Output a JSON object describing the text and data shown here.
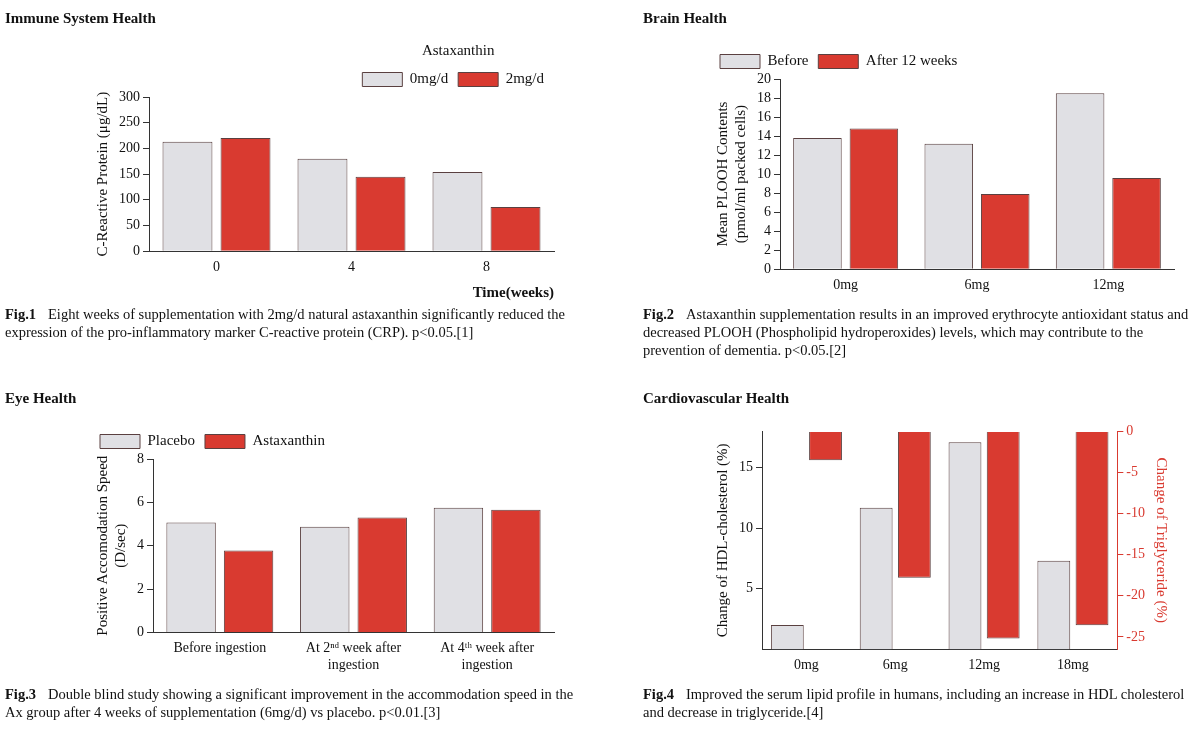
{
  "chart_data": [
    {
      "type": "bar",
      "title": "Immune System Health",
      "categories": [
        "0",
        "4",
        "8"
      ],
      "xlabel": "Time(weeks)",
      "ylabel": "C-Reactive Protein (μg/dL)",
      "legend_title": "Astaxanthin",
      "legend": "top right",
      "grid": false,
      "ylim": [
        0,
        300
      ],
      "yticks": [
        0,
        50,
        100,
        150,
        200,
        250,
        300
      ],
      "series": [
        {
          "name": "0mg/d",
          "color": "#e0e0e4",
          "values": [
            213,
            180,
            154
          ]
        },
        {
          "name": "2mg/d",
          "color": "#d93a30",
          "values": [
            220,
            145,
            86
          ]
        }
      ],
      "annotations": [
        "Fig.1 Eight weeks of supplementation with 2mg/d natural astaxanthin significantly reduced the expression of the pro-inflammatory marker C-reactive protein (CRP). p<0.05.[1]"
      ]
    },
    {
      "type": "bar",
      "title": "Brain Health",
      "categories": [
        "0mg",
        "6mg",
        "12mg"
      ],
      "ylabel": "Mean PLOOH Contents (pmol/ml packed cells)",
      "legend": "top left",
      "grid": false,
      "ylim": [
        0,
        20
      ],
      "yticks": [
        0,
        2,
        4,
        6,
        8,
        10,
        12,
        14,
        16,
        18,
        20
      ],
      "series": [
        {
          "name": "Before",
          "color": "#e0e0e4",
          "values": [
            13.8,
            13.2,
            18.5
          ]
        },
        {
          "name": "After 12 weeks",
          "color": "#d93a30",
          "values": [
            14.8,
            7.9,
            9.6
          ]
        }
      ],
      "annotations": [
        "Fig.2 Astaxanthin supplementation results in an improved erythrocyte antioxidant status and decreased PLOOH (Phospholipid hydroperoxides) levels, which may contribute to the prevention of dementia. p<0.05.[2]"
      ]
    },
    {
      "type": "bar",
      "title": "Eye Health",
      "categories": [
        "Before ingestion",
        "At 2ⁿᵈ week after ingestion",
        "At 4ᵗʰ week after ingestion"
      ],
      "ylabel": "Positive Accomodation Speed (D/sec)",
      "legend": "top left",
      "grid": false,
      "ylim": [
        0,
        8
      ],
      "yticks": [
        0,
        2,
        4,
        6,
        8
      ],
      "series": [
        {
          "name": "Placebo",
          "color": "#e0e0e4",
          "values": [
            5.07,
            4.88,
            5.75
          ]
        },
        {
          "name": "Astaxanthin",
          "color": "#d93a30",
          "values": [
            3.78,
            5.3,
            5.66
          ]
        }
      ],
      "annotations": [
        "Fig.3 Double blind study showing a significant improvement in the accommodation speed in the Ax group after 4 weeks of supplementation (6mg/d) vs placebo. p<0.01.[3]"
      ]
    },
    {
      "type": "bar",
      "title": "Cardiovascular Health",
      "categories": [
        "0mg",
        "6mg",
        "12mg",
        "18mg"
      ],
      "ylabel": "Change of HDL-cholesterol (%)",
      "y2label": "Change of Triglyceride (%)",
      "legend": false,
      "grid": false,
      "ylim": [
        0,
        18
      ],
      "yticks": [
        5,
        10,
        15
      ],
      "y2lim": [
        -26.5,
        0
      ],
      "y2ticks": [
        0,
        -5,
        -10,
        -15,
        -20,
        -25
      ],
      "series": [
        {
          "color": "#e0e0e4",
          "values": [
            2,
            11.7,
            17.1,
            7.3
          ]
        },
        {
          "color": "#d93a30",
          "axis": "y2",
          "values": [
            -3.5,
            -17.8,
            -25.2,
            -23.6
          ]
        }
      ],
      "annotations": [
        "Fig.4 Improved the serum lipid profile in humans, including an increase in HDL cholesterol and decrease in triglyceride.[4]"
      ]
    }
  ]
}
